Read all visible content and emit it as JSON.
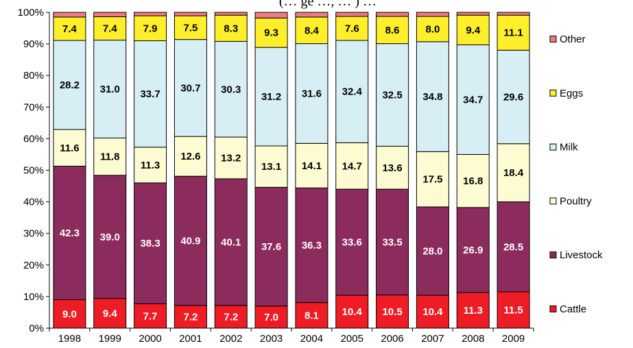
{
  "chart_data": {
    "type": "bar",
    "stacked": true,
    "title": "(… ge …, … ) …",
    "xlabel": "",
    "ylabel": "",
    "ylim": [
      0,
      100
    ],
    "y_ticks": [
      "0%",
      "10%",
      "20%",
      "30%",
      "40%",
      "50%",
      "60%",
      "70%",
      "80%",
      "90%",
      "100%"
    ],
    "grid": false,
    "legend_position": "right",
    "categories": [
      "1998",
      "1999",
      "2000",
      "2001",
      "2002",
      "2003",
      "2004",
      "2005",
      "2006",
      "2007",
      "2008",
      "2009"
    ],
    "series": [
      {
        "name": "Cattle",
        "color": "#ee1c25",
        "label_color": "#ffffff",
        "labeled": true,
        "values": [
          9.0,
          9.4,
          7.7,
          7.2,
          7.2,
          7.0,
          8.1,
          10.4,
          10.5,
          10.4,
          11.3,
          11.5
        ],
        "labels": [
          "9.0",
          "9.4",
          "7.7",
          "7.2",
          "7.2",
          "7.0",
          "8.1",
          "10.4",
          "10.5",
          "10.4",
          "11.3",
          "11.5"
        ]
      },
      {
        "name": "Livestock",
        "color": "#8b2c5d",
        "label_color": "#ffffff",
        "labeled": true,
        "values": [
          42.3,
          39.0,
          38.3,
          40.9,
          40.1,
          37.6,
          36.3,
          33.6,
          33.5,
          28.0,
          26.9,
          28.5
        ],
        "labels": [
          "42.3",
          "39.0",
          "38.3",
          "40.9",
          "40.1",
          "37.6",
          "36.3",
          "33.6",
          "33.5",
          "28.0",
          "26.9",
          "28.5"
        ]
      },
      {
        "name": "Poultry",
        "color": "#fdfbd2",
        "label_color": "#000000",
        "labeled": true,
        "values": [
          11.6,
          11.8,
          11.3,
          12.6,
          13.2,
          13.1,
          14.1,
          14.7,
          13.6,
          17.5,
          16.8,
          18.4
        ],
        "labels": [
          "11.6",
          "11.8",
          "11.3",
          "12.6",
          "13.2",
          "13.1",
          "14.1",
          "14.7",
          "13.6",
          "17.5",
          "16.8",
          "18.4"
        ]
      },
      {
        "name": "Milk",
        "color": "#d7eef4",
        "label_color": "#000000",
        "labeled": true,
        "values": [
          28.2,
          31.0,
          33.7,
          30.7,
          30.3,
          31.2,
          31.6,
          32.4,
          32.5,
          34.8,
          34.7,
          29.6
        ],
        "labels": [
          "28.2",
          "31.0",
          "33.7",
          "30.7",
          "30.3",
          "31.2",
          "31.6",
          "32.4",
          "32.5",
          "34.8",
          "34.7",
          "29.6"
        ]
      },
      {
        "name": "Eggs",
        "color": "#ffee2a",
        "label_color": "#000000",
        "labeled": true,
        "values": [
          7.4,
          7.4,
          7.9,
          7.5,
          8.3,
          9.3,
          8.4,
          7.6,
          8.6,
          8.0,
          9.4,
          11.1
        ],
        "labels": [
          "7.4",
          "7.4",
          "7.9",
          "7.5",
          "8.3",
          "9.3",
          "8.4",
          "7.6",
          "8.6",
          "8.0",
          "9.4",
          "11.1"
        ]
      },
      {
        "name": "Other",
        "color": "#f07a82",
        "label_color": "#000000",
        "labeled": false,
        "values": [
          1.5,
          1.4,
          1.1,
          1.1,
          0.9,
          1.8,
          1.5,
          1.3,
          1.3,
          1.3,
          0.9,
          0.9
        ]
      }
    ]
  }
}
